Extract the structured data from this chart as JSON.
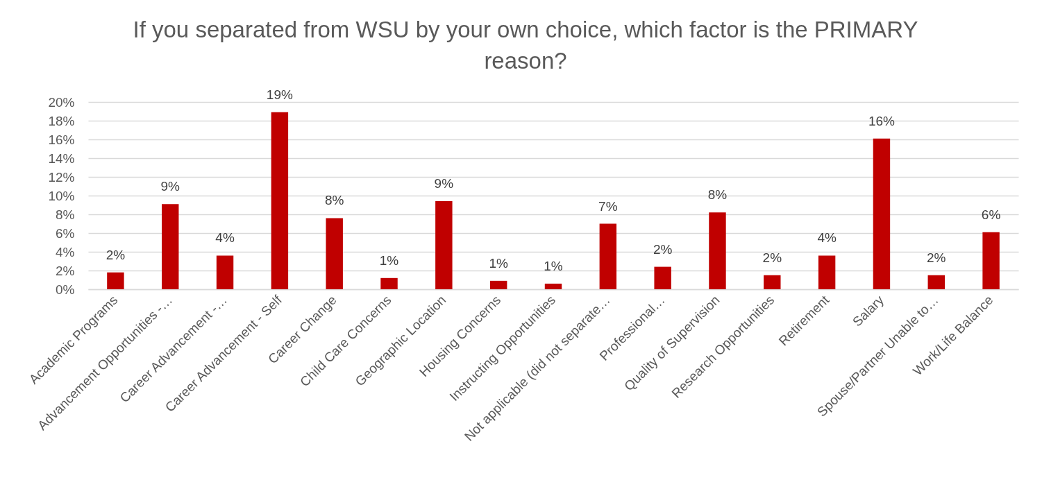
{
  "chart_data": {
    "type": "bar",
    "title": "If you separated from WSU by your own choice, which factor is the PRIMARY reason?",
    "categories": [
      "Academic Programs",
      "Advancement Opportunities -…",
      "Career Advancement -…",
      "Career Advancement - Self",
      "Career Change",
      "Child Care Concerns",
      "Geographic Location",
      "Housing Concerns",
      "Instructing Opportunities",
      "Not applicable (did not separate…",
      "Professional…",
      "Quality of Supervision",
      "Research Opportunities",
      "Retirement",
      "Salary",
      "Spouse/Partner Unable to…",
      "Work/Life Balance"
    ],
    "values": [
      1.8,
      9.1,
      3.6,
      18.9,
      7.6,
      1.2,
      9.4,
      0.9,
      0.6,
      7.0,
      2.4,
      8.2,
      1.5,
      3.6,
      16.1,
      1.5,
      6.1
    ],
    "value_labels": [
      "2%",
      "9%",
      "4%",
      "19%",
      "8%",
      "1%",
      "9%",
      "1%",
      "1%",
      "7%",
      "2%",
      "8%",
      "2%",
      "4%",
      "16%",
      "2%",
      "6%"
    ],
    "color": "#c00000",
    "ylim": [
      0,
      20
    ],
    "yticks": [
      {
        "value": 0,
        "label": "0%"
      },
      {
        "value": 2,
        "label": "2%"
      },
      {
        "value": 4,
        "label": "4%"
      },
      {
        "value": 6,
        "label": "6%"
      },
      {
        "value": 8,
        "label": "8%"
      },
      {
        "value": 10,
        "label": "10%"
      },
      {
        "value": 12,
        "label": "12%"
      },
      {
        "value": 14,
        "label": "14%"
      },
      {
        "value": 16,
        "label": "16%"
      },
      {
        "value": 18,
        "label": "18%"
      },
      {
        "value": 20,
        "label": "20%"
      }
    ],
    "grid": "y"
  }
}
